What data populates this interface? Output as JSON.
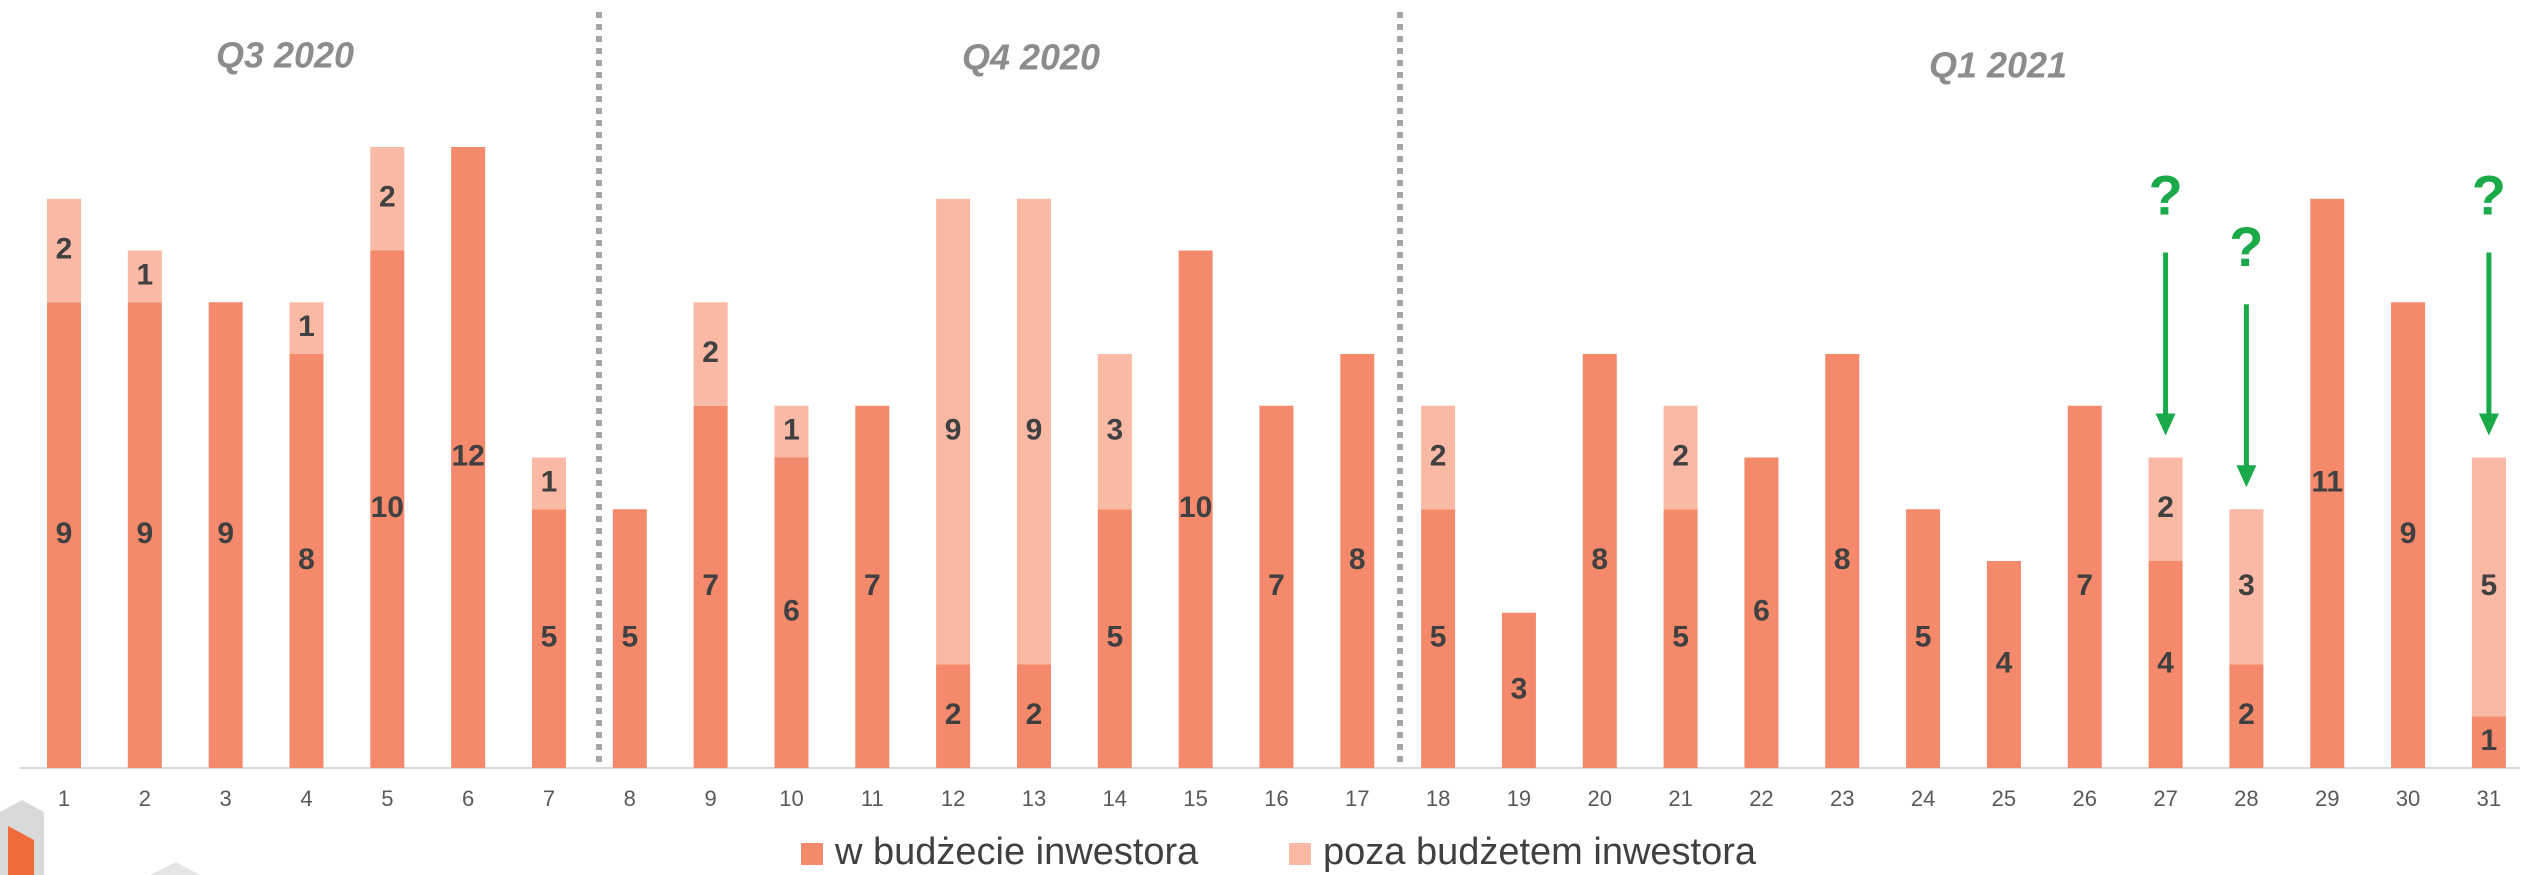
{
  "chart_data": {
    "type": "stacked_bar",
    "categories": [
      "1",
      "2",
      "3",
      "4",
      "5",
      "6",
      "7",
      "8",
      "9",
      "10",
      "11",
      "12",
      "13",
      "14",
      "15",
      "16",
      "17",
      "18",
      "19",
      "20",
      "21",
      "22",
      "23",
      "24",
      "25",
      "26",
      "27",
      "28",
      "29",
      "30",
      "31"
    ],
    "series": [
      {
        "name": "w budżecie inwestora",
        "color": "#f4896b",
        "values": [
          9,
          9,
          9,
          8,
          10,
          12,
          5,
          5,
          7,
          6,
          7,
          2,
          2,
          5,
          10,
          7,
          8,
          5,
          3,
          8,
          5,
          6,
          8,
          5,
          4,
          7,
          4,
          2,
          11,
          9,
          1
        ]
      },
      {
        "name": "poza budżetem inwestora",
        "color": "#f9b9a4",
        "values": [
          2,
          1,
          null,
          1,
          2,
          null,
          1,
          null,
          2,
          1,
          null,
          9,
          9,
          3,
          null,
          null,
          null,
          2,
          null,
          null,
          2,
          null,
          null,
          null,
          null,
          null,
          2,
          3,
          null,
          null,
          5
        ]
      }
    ],
    "ylim": [
      0,
      12
    ],
    "quarters": [
      "Q3 2020",
      "Q4 2020",
      "Q1 2021"
    ],
    "annotations": [
      {
        "text": "?",
        "category": "27"
      },
      {
        "text": "?",
        "category": "28"
      },
      {
        "text": "?",
        "category": "31"
      }
    ],
    "annotation_color": "#1aaa4a",
    "legend": "bottom"
  }
}
